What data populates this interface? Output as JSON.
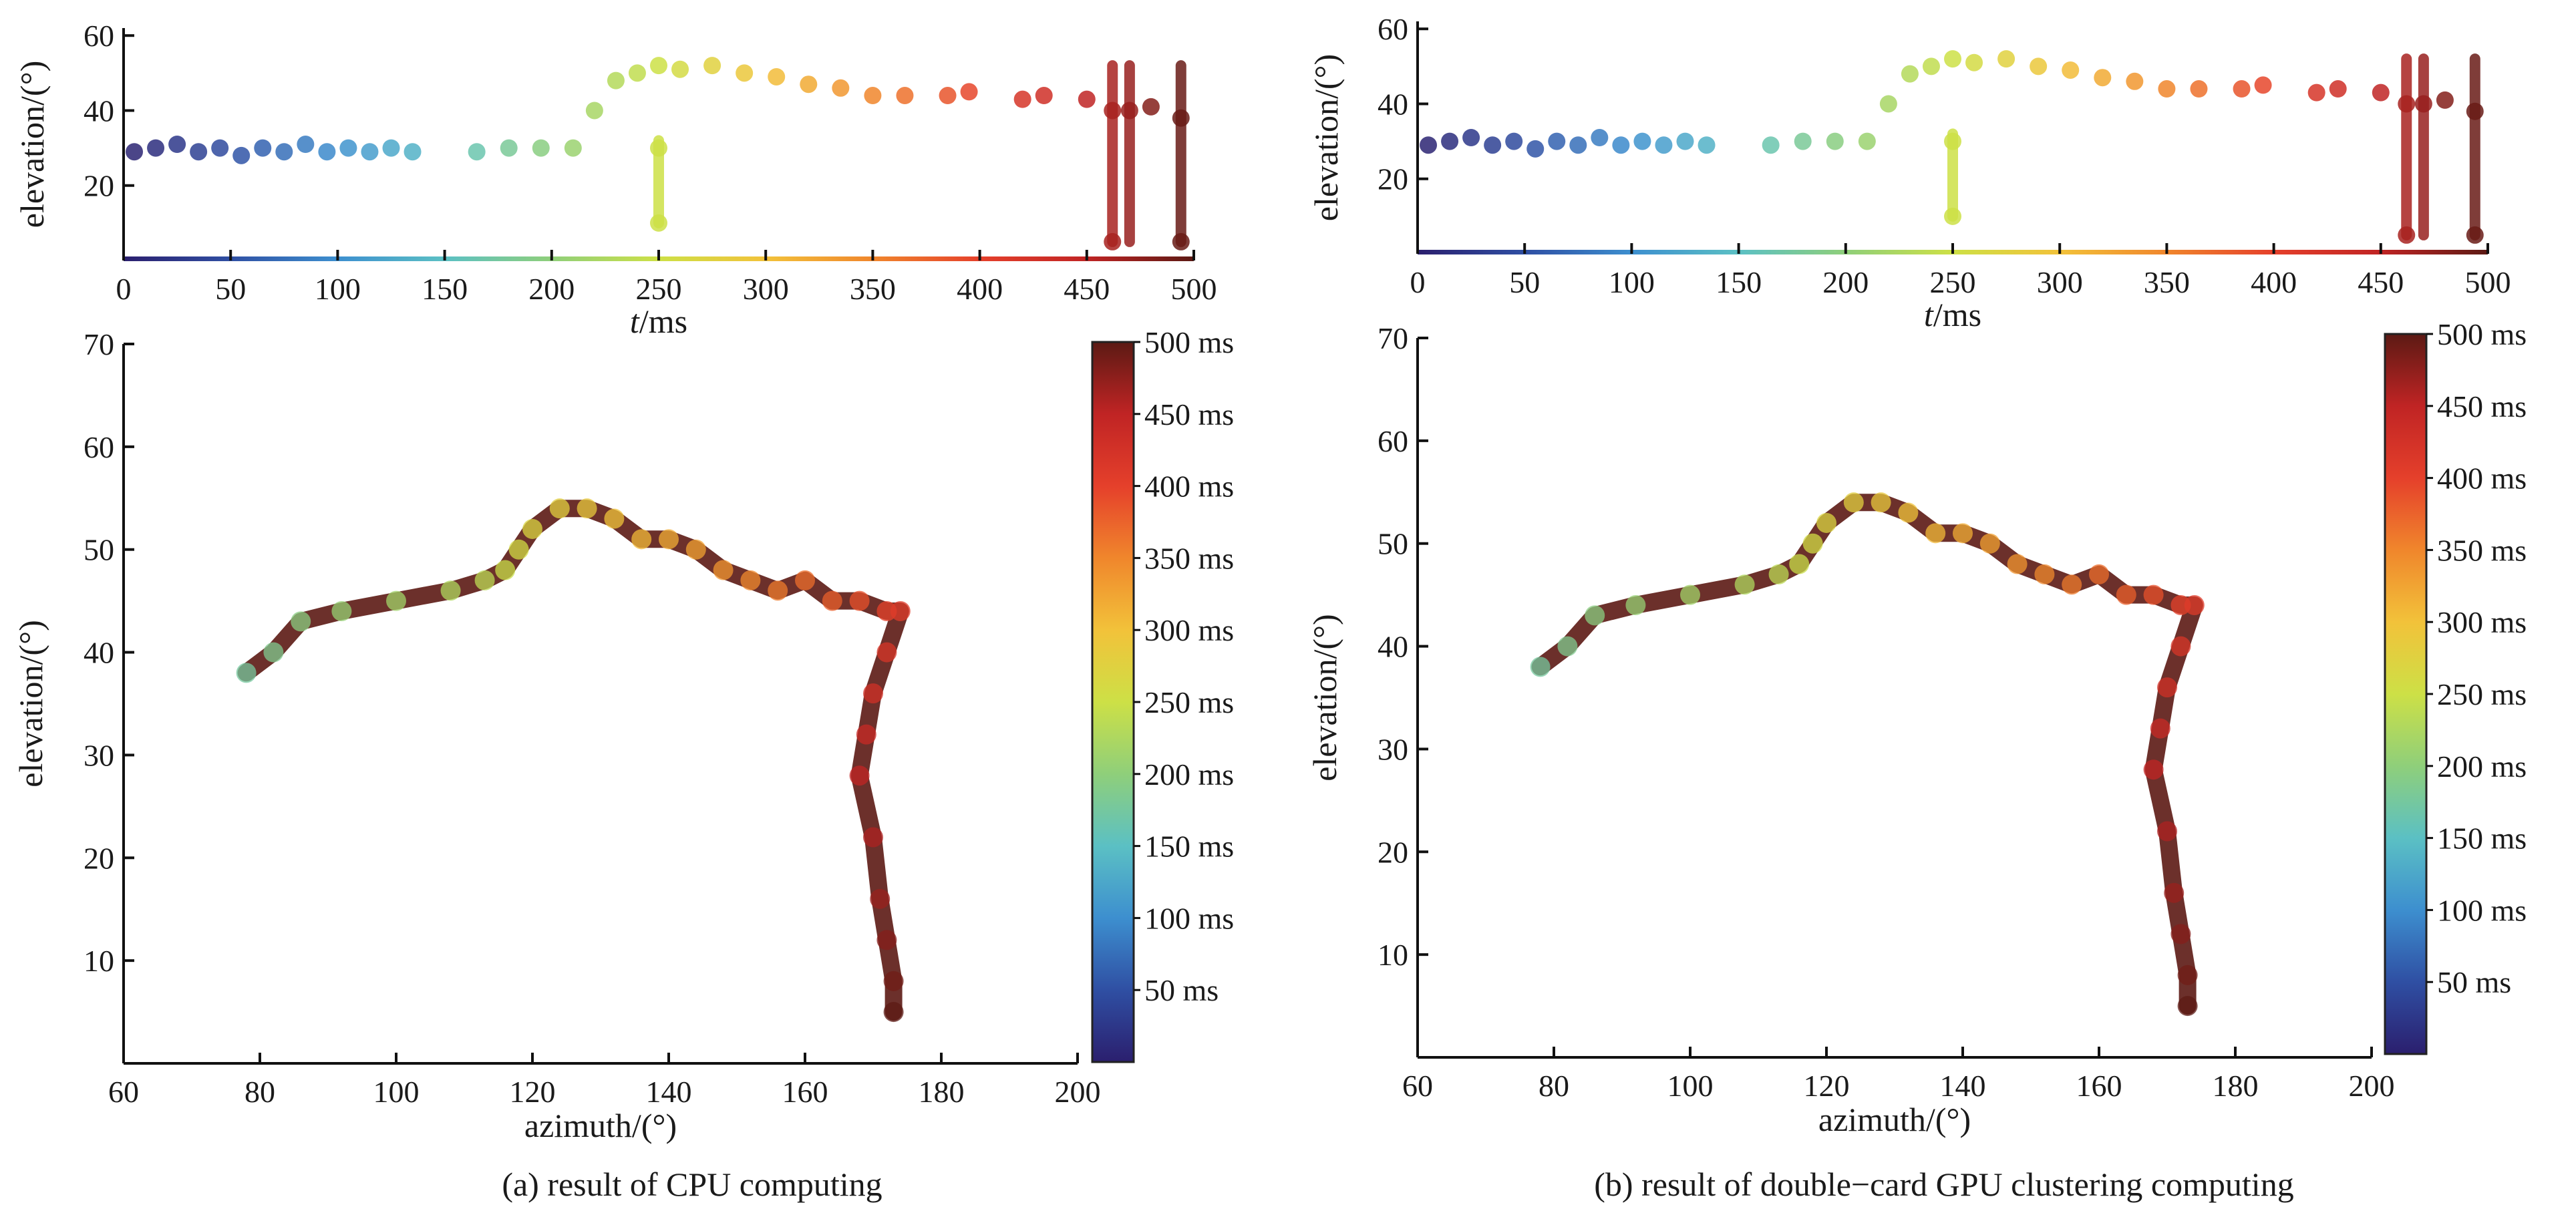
{
  "panels": [
    {
      "caption": "(a) result of CPU computing"
    },
    {
      "caption": "(b) result of double−card GPU clustering computing"
    }
  ],
  "colorbar": {
    "ticks": [
      "50 ms",
      "100 ms",
      "150 ms",
      "200 ms",
      "250 ms",
      "300 ms",
      "350 ms",
      "400 ms",
      "450 ms",
      "500 ms"
    ],
    "stops": [
      "#2b1f6e",
      "#2f4fa3",
      "#3d8fcf",
      "#5bc0c4",
      "#8fcf7a",
      "#cde046",
      "#f2c23a",
      "#f0862c",
      "#e5402b",
      "#c02424",
      "#5c1a14"
    ]
  },
  "chart_data": [
    {
      "panel": "a",
      "subplot": "top",
      "type": "scatter",
      "xlabel": "t/ms",
      "ylabel": "elevation/(°)",
      "xlim": [
        0,
        500
      ],
      "ylim": [
        0,
        62
      ],
      "xticks": [
        0,
        50,
        100,
        150,
        200,
        250,
        300,
        350,
        400,
        450,
        500
      ],
      "yticks": [
        20,
        40,
        60
      ],
      "color_encodes": "t/ms",
      "series": [
        {
          "name": "",
          "x": [
            5,
            15,
            25,
            35,
            45,
            55,
            65,
            75,
            85,
            95,
            105,
            115,
            125,
            135,
            165,
            180,
            195,
            210,
            220,
            230,
            240,
            250,
            250,
            250,
            260,
            275,
            290,
            305,
            320,
            335,
            350,
            365,
            385,
            395,
            420,
            430,
            450,
            462,
            462,
            470,
            480,
            494,
            494
          ],
          "y": [
            29,
            30,
            31,
            29,
            30,
            28,
            30,
            29,
            31,
            29,
            30,
            29,
            30,
            29,
            29,
            30,
            30,
            30,
            40,
            48,
            50,
            30,
            10,
            52,
            51,
            52,
            50,
            49,
            47,
            46,
            44,
            44,
            44,
            45,
            43,
            44,
            43,
            40,
            5,
            40,
            41,
            38,
            5
          ]
        }
      ]
    },
    {
      "panel": "a",
      "subplot": "main",
      "type": "scatter",
      "xlabel": "azimuth/(°)",
      "ylabel": "elevation/(°)",
      "xlim": [
        60,
        200
      ],
      "ylim": [
        0,
        70
      ],
      "xticks": [
        60,
        80,
        100,
        120,
        140,
        160,
        180,
        200
      ],
      "yticks": [
        10,
        20,
        30,
        40,
        50,
        60,
        70
      ],
      "color_encodes": "t/ms",
      "series": [
        {
          "name": "",
          "x": [
            78,
            82,
            86,
            92,
            100,
            108,
            113,
            116,
            118,
            120,
            124,
            128,
            132,
            136,
            140,
            144,
            148,
            152,
            156,
            160,
            164,
            168,
            172,
            174,
            172,
            170,
            169,
            168,
            170,
            171,
            172,
            173,
            173
          ],
          "y": [
            38,
            40,
            43,
            44,
            45,
            46,
            47,
            48,
            50,
            52,
            54,
            54,
            53,
            51,
            51,
            50,
            48,
            47,
            46,
            47,
            45,
            45,
            44,
            44,
            40,
            36,
            32,
            28,
            22,
            16,
            12,
            8,
            5
          ]
        }
      ]
    },
    {
      "panel": "b",
      "subplot": "top",
      "type": "scatter",
      "xlabel": "t/ms",
      "ylabel": "elevation/(°)",
      "xlim": [
        0,
        500
      ],
      "ylim": [
        0,
        62
      ],
      "xticks": [
        0,
        50,
        100,
        150,
        200,
        250,
        300,
        350,
        400,
        450,
        500
      ],
      "yticks": [
        20,
        40,
        60
      ],
      "color_encodes": "t/ms",
      "series": [
        {
          "name": "",
          "x": [
            5,
            15,
            25,
            35,
            45,
            55,
            65,
            75,
            85,
            95,
            105,
            115,
            125,
            135,
            165,
            180,
            195,
            210,
            220,
            230,
            240,
            250,
            250,
            250,
            260,
            275,
            290,
            305,
            320,
            335,
            350,
            365,
            385,
            395,
            420,
            430,
            450,
            462,
            462,
            470,
            480,
            494,
            494
          ],
          "y": [
            29,
            30,
            31,
            29,
            30,
            28,
            30,
            29,
            31,
            29,
            30,
            29,
            30,
            29,
            29,
            30,
            30,
            30,
            40,
            48,
            50,
            30,
            10,
            52,
            51,
            52,
            50,
            49,
            47,
            46,
            44,
            44,
            44,
            45,
            43,
            44,
            43,
            40,
            5,
            40,
            41,
            38,
            5
          ]
        }
      ]
    },
    {
      "panel": "b",
      "subplot": "main",
      "type": "scatter",
      "xlabel": "azimuth/(°)",
      "ylabel": "elevation/(°)",
      "xlim": [
        60,
        200
      ],
      "ylim": [
        0,
        70
      ],
      "xticks": [
        60,
        80,
        100,
        120,
        140,
        160,
        180,
        200
      ],
      "yticks": [
        10,
        20,
        30,
        40,
        50,
        60,
        70
      ],
      "color_encodes": "t/ms",
      "series": [
        {
          "name": "",
          "x": [
            78,
            82,
            86,
            92,
            100,
            108,
            113,
            116,
            118,
            120,
            124,
            128,
            132,
            136,
            140,
            144,
            148,
            152,
            156,
            160,
            164,
            168,
            172,
            174,
            172,
            170,
            169,
            168,
            170,
            171,
            172,
            173,
            173
          ],
          "y": [
            38,
            40,
            43,
            44,
            45,
            46,
            47,
            48,
            50,
            52,
            54,
            54,
            53,
            51,
            51,
            50,
            48,
            47,
            46,
            47,
            45,
            45,
            44,
            44,
            40,
            36,
            32,
            28,
            22,
            16,
            12,
            8,
            5
          ]
        }
      ]
    }
  ]
}
